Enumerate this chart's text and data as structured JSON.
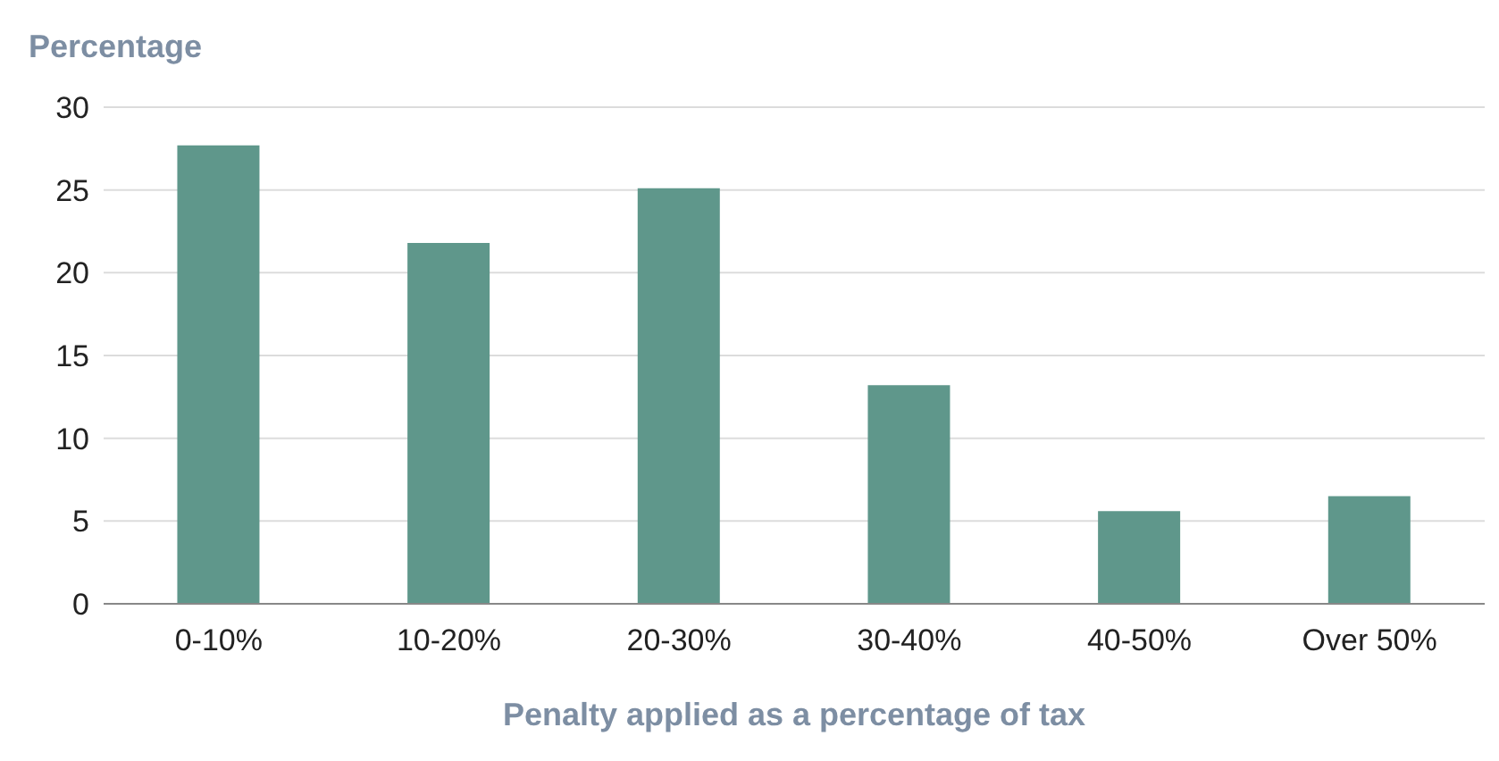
{
  "chart_data": {
    "type": "bar",
    "ylabel": "Percentage",
    "xlabel": "Penalty applied as a percentage of tax",
    "categories": [
      "0-10%",
      "10-20%",
      "20-30%",
      "30-40%",
      "40-50%",
      "Over 50%"
    ],
    "values": [
      27.7,
      21.8,
      25.1,
      13.2,
      5.6,
      6.5
    ],
    "color": "#5f978b",
    "ylim": [
      0,
      30
    ],
    "yticks": [
      0,
      5,
      10,
      15,
      20,
      25,
      30
    ],
    "grid": "y"
  }
}
